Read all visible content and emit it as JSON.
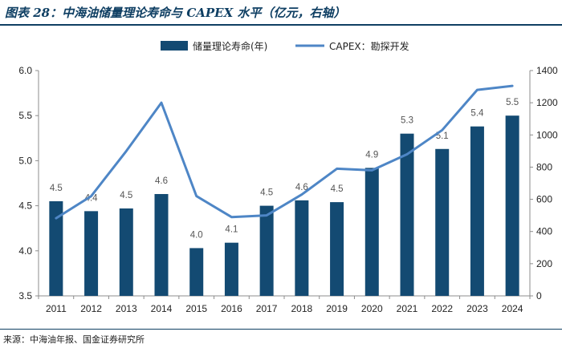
{
  "figure_title": "图表 28：中海油储量理论寿命与 CAPEX 水平（亿元，右轴）",
  "source_note": "来源：中海油年报、国金证券研究所",
  "chart_data": {
    "type": "bar",
    "categories": [
      "2011",
      "2012",
      "2013",
      "2014",
      "2015",
      "2016",
      "2017",
      "2018",
      "2019",
      "2020",
      "2021",
      "2022",
      "2023",
      "2024"
    ],
    "series": [
      {
        "name": "储量理论寿命(年)",
        "type": "bar",
        "axis": "left",
        "color": "#134a72",
        "values": [
          4.55,
          4.44,
          4.47,
          4.63,
          4.03,
          4.09,
          4.5,
          4.56,
          4.54,
          4.92,
          5.3,
          5.13,
          5.38,
          5.5
        ],
        "labels": [
          "4.5",
          "4.4",
          "4.5",
          "4.6",
          "4.0",
          "4.1",
          "4.5",
          "4.6",
          "4.5",
          "4.9",
          "5.3",
          "5.1",
          "5.4",
          "5.5"
        ]
      },
      {
        "name": "CAPEX：勘探开发",
        "type": "line",
        "axis": "right",
        "color": "#4e86c6",
        "values": [
          483,
          620,
          900,
          1200,
          620,
          490,
          500,
          630,
          790,
          780,
          880,
          1030,
          1280,
          1305
        ]
      }
    ],
    "y_left": {
      "min": 3.5,
      "max": 6.0,
      "ticks": [
        "3.5",
        "4.0",
        "4.5",
        "5.0",
        "5.5",
        "6.0"
      ]
    },
    "y_right": {
      "min": 0,
      "max": 1400,
      "ticks": [
        "0",
        "200",
        "400",
        "600",
        "800",
        "1000",
        "1200",
        "1400"
      ]
    },
    "grid": false,
    "legend_position": "top-center"
  }
}
